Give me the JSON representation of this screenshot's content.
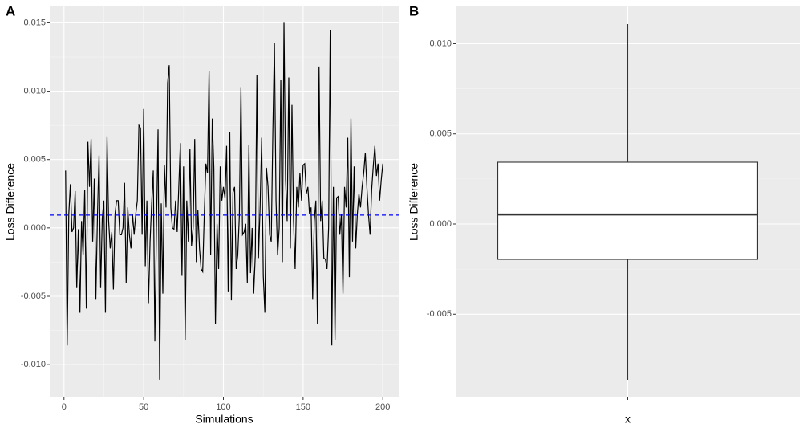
{
  "chart_data": [
    {
      "type": "line",
      "panel_label": "A",
      "x_label": "Simulations",
      "y_label": "Loss Difference",
      "x": [
        1,
        2,
        3,
        4,
        5,
        6,
        7,
        8,
        9,
        10,
        11,
        12,
        13,
        14,
        15,
        16,
        17,
        18,
        19,
        20,
        21,
        22,
        23,
        24,
        25,
        26,
        27,
        28,
        29,
        30,
        31,
        32,
        33,
        34,
        35,
        36,
        37,
        38,
        39,
        40,
        41,
        42,
        43,
        44,
        45,
        46,
        47,
        48,
        49,
        50,
        51,
        52,
        53,
        54,
        55,
        56,
        57,
        58,
        59,
        60,
        61,
        62,
        63,
        64,
        65,
        66,
        67,
        68,
        69,
        70,
        71,
        72,
        73,
        74,
        75,
        76,
        77,
        78,
        79,
        80,
        81,
        82,
        83,
        84,
        85,
        86,
        87,
        88,
        89,
        90,
        91,
        92,
        93,
        94,
        95,
        96,
        97,
        98,
        99,
        100,
        101,
        102,
        103,
        104,
        105,
        106,
        107,
        108,
        109,
        110,
        111,
        112,
        113,
        114,
        115,
        116,
        117,
        118,
        119,
        120,
        121,
        122,
        123,
        124,
        125,
        126,
        127,
        128,
        129,
        130,
        131,
        132,
        133,
        134,
        135,
        136,
        137,
        138,
        139,
        140,
        141,
        142,
        143,
        144,
        145,
        146,
        147,
        148,
        149,
        150,
        151,
        152,
        153,
        154,
        155,
        156,
        157,
        158,
        159,
        160,
        161,
        162,
        163,
        164,
        165,
        166,
        167,
        168,
        169,
        170,
        171,
        172,
        173,
        174,
        175,
        176,
        177,
        178,
        179,
        180,
        181,
        182,
        183,
        184,
        185,
        186,
        187,
        188,
        189,
        190,
        191,
        192,
        193,
        194,
        195,
        196,
        197,
        198,
        199,
        200
      ],
      "series": [
        {
          "color": "#000000",
          "values": [
            0.0042,
            -0.0086,
            0.001,
            0.0032,
            -0.0003,
            0.0,
            0.0027,
            -0.0044,
            -0.0001,
            -0.0062,
            0.0005,
            -0.002,
            0.0028,
            -0.0059,
            0.0063,
            0.003,
            0.0065,
            -0.001,
            0.0036,
            -0.0052,
            0.001,
            0.0053,
            -0.0044,
            0.0007,
            0.002,
            -0.0062,
            0.0067,
            0.0005,
            -0.0015,
            -0.0003,
            -0.0045,
            0.001,
            0.002,
            0.002,
            -0.0005,
            -0.0005,
            0.0,
            0.0033,
            -0.004,
            0.0015,
            -0.0005,
            -0.0015,
            0.001,
            -0.0005,
            0.001,
            0.002,
            0.0075,
            0.0073,
            -0.0005,
            0.0087,
            -0.0028,
            0.002,
            -0.0055,
            -0.001,
            0.0018,
            0.0042,
            -0.0083,
            0.0,
            0.0072,
            -0.0111,
            0.0018,
            -0.0048,
            0.0046,
            0.0015,
            0.0106,
            0.0119,
            0.0015,
            0.0,
            -0.0001,
            0.002,
            -0.0003,
            0.003,
            0.0062,
            -0.0035,
            0.0045,
            -0.0082,
            0.002,
            -0.001,
            0.0058,
            -0.0013,
            0.0,
            0.0065,
            -0.0025,
            0.0013,
            -0.0015,
            -0.003,
            -0.0032,
            0.001,
            0.0047,
            0.004,
            0.0115,
            -0.002,
            0.008,
            0.0044,
            -0.007,
            0.0003,
            -0.003,
            0.0045,
            0.002,
            0.003,
            0.0022,
            0.006,
            -0.0047,
            0.007,
            -0.0053,
            0.0026,
            0.003,
            -0.003,
            -0.002,
            0.0009,
            0.0103,
            -0.0005,
            -0.0003,
            0.0003,
            -0.004,
            0.0061,
            -0.0033,
            0.0,
            -0.0048,
            -0.002,
            0.0112,
            -0.0022,
            0.0015,
            0.0066,
            -0.0035,
            -0.0062,
            0.0044,
            0.003,
            -0.0005,
            -0.001,
            0.007,
            0.0135,
            0.002,
            -0.002,
            0.0,
            0.0108,
            -0.0025,
            0.015,
            0.0035,
            0.0005,
            0.011,
            -0.0015,
            0.009,
            0.0005,
            -0.003,
            0.003,
            0.0015,
            0.004,
            0.002,
            0.0046,
            0.0047,
            0.0025,
            0.003,
            0.001,
            0.0015,
            -0.0052,
            0.0005,
            0.002,
            -0.007,
            0.0118,
            0.0005,
            0.002,
            -0.0022,
            -0.0023,
            -0.003,
            0.0,
            0.0145,
            -0.0086,
            0.003,
            -0.0082,
            0.0022,
            0.0023,
            -0.0005,
            0.001,
            -0.0048,
            0.003,
            0.0015,
            0.0066,
            -0.0036,
            0.008,
            -0.001,
            0.0045,
            -0.0015,
            0.001,
            0.0025,
            0.0015,
            0.003,
            0.004,
            0.0055,
            0.003,
            0.001,
            -0.0005,
            0.0028,
            0.0045,
            0.006,
            0.0038,
            0.0047,
            0.002,
            0.0035,
            0.0047
          ]
        }
      ],
      "hline": {
        "value": 0.00094,
        "color": "#0000ff",
        "dashed": true
      },
      "xlim": [
        -8.95,
        209.95
      ],
      "xticks": [
        0,
        50,
        100,
        150,
        200
      ],
      "ylim": [
        -0.0124,
        0.0162
      ],
      "yticks": [
        {
          "value": -0.01,
          "label": "-0.010"
        },
        {
          "value": -0.005,
          "label": "-0.005"
        },
        {
          "value": 0,
          "label": "0.000"
        },
        {
          "value": 0.005,
          "label": "0.005"
        },
        {
          "value": 0.01,
          "label": "0.010"
        },
        {
          "value": 0.015,
          "label": "0.015"
        }
      ],
      "grid": true
    },
    {
      "type": "box",
      "panel_label": "B",
      "x_label": "x",
      "y_label": "Loss Difference",
      "min": -0.00864,
      "q1": -0.00196,
      "median": 0.00053,
      "q3": 0.00343,
      "max": 0.01109,
      "ylim": [
        -0.00962,
        0.01207
      ],
      "yticks": [
        {
          "value": -0.005,
          "label": "-0.005"
        },
        {
          "value": 0,
          "label": "0.000"
        },
        {
          "value": 0.005,
          "label": "0.005"
        },
        {
          "value": 0.01,
          "label": "0.010"
        }
      ],
      "grid": true
    }
  ]
}
